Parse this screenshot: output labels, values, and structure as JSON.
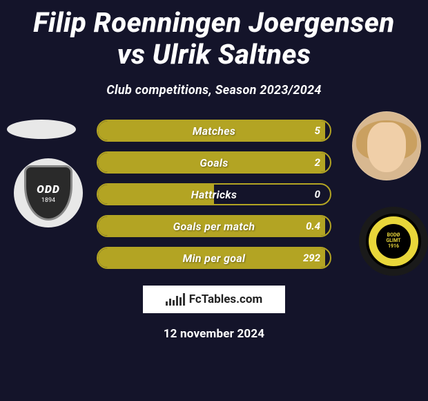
{
  "title": "Filip Roenningen Joergensen vs Ulrik Saltnes",
  "subtitle": "Club competitions, Season 2023/2024",
  "left_club": {
    "name": "ODD",
    "year": "1894"
  },
  "right_club": {
    "name_top": "BODØ",
    "name_bottom": "GLIMT",
    "year": "1916"
  },
  "stats": {
    "bar_fill_color": "#b3a423",
    "bar_border_color": "#b3a423",
    "rows": [
      {
        "label": "Matches",
        "value": "5",
        "fill_pct": 98
      },
      {
        "label": "Goals",
        "value": "2",
        "fill_pct": 98
      },
      {
        "label": "Hattricks",
        "value": "0",
        "fill_pct": 50
      },
      {
        "label": "Goals per match",
        "value": "0.4",
        "fill_pct": 98
      },
      {
        "label": "Min per goal",
        "value": "292",
        "fill_pct": 98
      }
    ]
  },
  "brand": "FcTables.com",
  "date": "12 november 2024",
  "colors": {
    "background": "#14142a",
    "accent": "#b3a423",
    "right_badge_yellow": "#e8d63a"
  }
}
